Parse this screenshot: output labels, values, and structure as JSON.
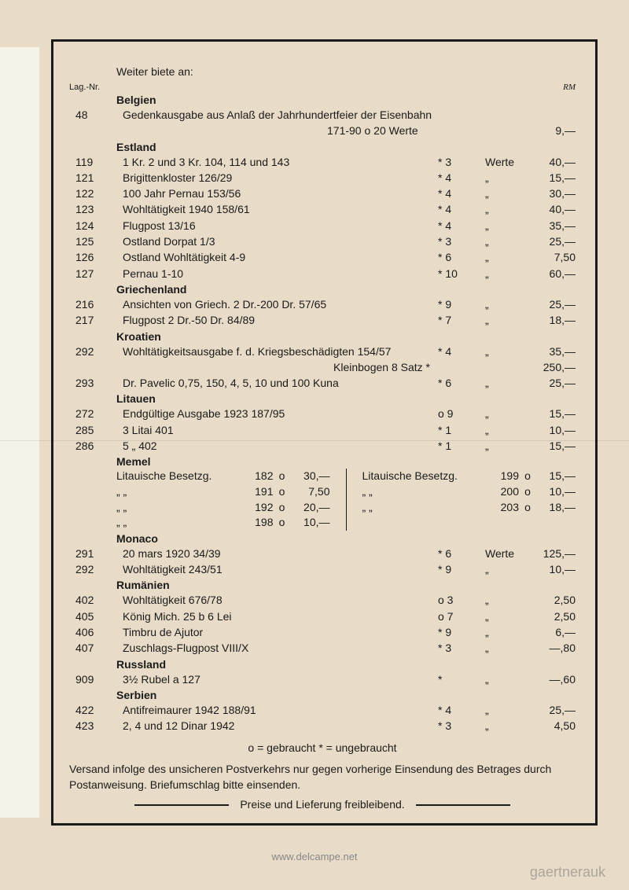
{
  "intro": "Weiter biete an:",
  "head_left": "Lag.-Nr.",
  "head_right": "RM",
  "sections": {
    "belgien": {
      "title": "Belgien",
      "rows": [
        {
          "lag": "48",
          "desc": "Gedenkausgabe aus Anlaß der Jahrhundertfeier der Eisenbahn",
          "notes": "",
          "werte": "",
          "price": ""
        }
      ],
      "subrow": {
        "desc": "171-90 o 20 Werte",
        "price": "9,—"
      }
    },
    "estland": {
      "title": "Estland",
      "rows": [
        {
          "lag": "119",
          "desc": "1 Kr. 2 und 3 Kr.  104, 114 und 143",
          "notes": "* 3",
          "werte": "Werte",
          "price": "40,—"
        },
        {
          "lag": "121",
          "desc": "Brigittenkloster  126/29",
          "notes": "* 4",
          "werte": "„",
          "price": "15,—"
        },
        {
          "lag": "122",
          "desc": "100 Jahr Pernau  153/56",
          "notes": "* 4",
          "werte": "„",
          "price": "30,—"
        },
        {
          "lag": "123",
          "desc": "Wohltätigkeit 1940  158/61",
          "notes": "* 4",
          "werte": "„",
          "price": "40,—"
        },
        {
          "lag": "124",
          "desc": "Flugpost  13/16",
          "notes": "* 4",
          "werte": "„",
          "price": "35,—"
        },
        {
          "lag": "125",
          "desc": "Ostland  Dorpat  1/3",
          "notes": "* 3",
          "werte": "„",
          "price": "25,—"
        },
        {
          "lag": "126",
          "desc": "Ostland  Wohltätigkeit  4-9",
          "notes": "* 6",
          "werte": "„",
          "price": "7,50"
        },
        {
          "lag": "127",
          "desc": "Pernau  1-10",
          "notes": "* 10",
          "werte": "„",
          "price": "60,—"
        }
      ]
    },
    "griechenland": {
      "title": "Griechenland",
      "rows": [
        {
          "lag": "216",
          "desc": "Ansichten von Griech.  2 Dr.-200 Dr.  57/65",
          "notes": "* 9",
          "werte": "„",
          "price": "25,—"
        },
        {
          "lag": "217",
          "desc": "Flugpost  2 Dr.-50 Dr.  84/89",
          "notes": "* 7",
          "werte": "„",
          "price": "18,—"
        }
      ]
    },
    "kroatien": {
      "title": "Kroatien",
      "rows": [
        {
          "lag": "292",
          "desc": "Wohltätigkeitsausgabe f. d. Kriegsbeschädigten  154/57",
          "notes": "* 4",
          "werte": "„",
          "price": "35,—"
        }
      ],
      "mid": {
        "desc": "Kleinbogen  8 Satz *",
        "price": "250,—"
      },
      "rows2": [
        {
          "lag": "293",
          "desc": "Dr. Pavelic  0,75, 150, 4, 5, 10 und 100 Kuna",
          "notes": "* 6",
          "werte": "„",
          "price": "25,—"
        }
      ]
    },
    "litauen": {
      "title": "Litauen",
      "rows": [
        {
          "lag": "272",
          "desc": "Endgültige Ausgabe 1923  187/95",
          "notes": "o 9",
          "werte": "„",
          "price": "15,—"
        },
        {
          "lag": "285",
          "desc": "3 Litai  401",
          "notes": "* 1",
          "werte": "„",
          "price": "10,—"
        },
        {
          "lag": "286",
          "desc": "5    „    402",
          "notes": "* 1",
          "werte": "„",
          "price": "15,—"
        }
      ]
    },
    "memel": {
      "title": "Memel",
      "left": [
        {
          "desc": "Litauische Besetzg.",
          "num": "182",
          "sym": "o",
          "price": "30,—"
        },
        {
          "desc": "„            „",
          "num": "191",
          "sym": "o",
          "price": "7,50"
        },
        {
          "desc": "„            „",
          "num": "192",
          "sym": "o",
          "price": "20,—"
        },
        {
          "desc": "„            „",
          "num": "198",
          "sym": "o",
          "price": "10,—"
        }
      ],
      "right": [
        {
          "desc": "Litauische Besetzg.",
          "num": "199",
          "sym": "o",
          "price": "15,—"
        },
        {
          "desc": "„            „",
          "num": "200",
          "sym": "o",
          "price": "10,—"
        },
        {
          "desc": "„            „",
          "num": "203",
          "sym": "o",
          "price": "18,—"
        }
      ]
    },
    "monaco": {
      "title": "Monaco",
      "rows": [
        {
          "lag": "291",
          "desc": "20 mars 1920  34/39",
          "notes": "* 6",
          "werte": "Werte",
          "price": "125,—"
        },
        {
          "lag": "292",
          "desc": "Wohltätigkeit  243/51",
          "notes": "* 9",
          "werte": "„",
          "price": "10,—"
        }
      ]
    },
    "rumaenien": {
      "title": "Rumänien",
      "rows": [
        {
          "lag": "402",
          "desc": "Wohltätigkeit  676/78",
          "notes": "o 3",
          "werte": "„",
          "price": "2,50"
        },
        {
          "lag": "405",
          "desc": "König Mich. 25 b  6 Lei",
          "notes": "o 7",
          "werte": "„",
          "price": "2,50"
        },
        {
          "lag": "406",
          "desc": "Timbru de Ajutor",
          "notes": "* 9",
          "werte": "„",
          "price": "6,—"
        },
        {
          "lag": "407",
          "desc": "Zuschlags-Flugpost  VIII/X",
          "notes": "* 3",
          "werte": "„",
          "price": "—,80"
        }
      ]
    },
    "russland": {
      "title": "Russland",
      "rows": [
        {
          "lag": "909",
          "desc": "3½ Rubel a 127",
          "notes": "*",
          "werte": "„",
          "price": "—,60"
        }
      ]
    },
    "serbien": {
      "title": "Serbien",
      "rows": [
        {
          "lag": "422",
          "desc": "Antifreimaurer 1942  188/91",
          "notes": "* 4",
          "werte": "„",
          "price": "25,—"
        },
        {
          "lag": "423",
          "desc": "2, 4 und 12 Dinar 1942",
          "notes": "* 3",
          "werte": "„",
          "price": "4,50"
        }
      ]
    }
  },
  "legend": "o = gebraucht   * = ungebraucht",
  "footer": "Versand infolge des unsicheren Postverkehrs nur gegen vorherige Einsendung des Betrages durch Postanweisung. Briefumschlag bitte einsenden.",
  "closing": "Preise und Lieferung freibleibend.",
  "watermark": "gaertnerauk",
  "bottom": "www.delcampe.net"
}
